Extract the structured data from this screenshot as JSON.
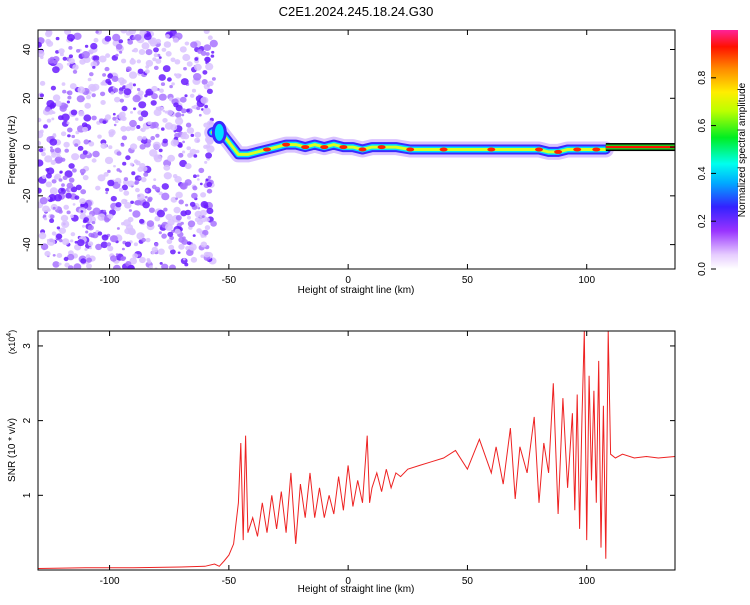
{
  "title": "C2E1.2024.245.18.24.G30",
  "colors": {
    "background": "#ffffff",
    "dot_purple": "#7a2cff",
    "snr_line": "#ee2222"
  },
  "chart_data": [
    {
      "type": "heatmap",
      "title": "C2E1.2024.245.18.24.G30",
      "xlabel": "Height of straight line (km)",
      "ylabel": "Frequency (Hz)",
      "xlim": [
        -130,
        137
      ],
      "ylim": [
        -50,
        48
      ],
      "x_ticks": [
        -100,
        -50,
        0,
        50,
        100
      ],
      "x_tick_labels": [
        "-100",
        "-50",
        "0",
        "50",
        "100"
      ],
      "y_ticks": [
        -40,
        -20,
        0,
        20,
        40
      ],
      "y_tick_labels": [
        "-40",
        "-20",
        "0",
        "20",
        "40"
      ],
      "noise_region_x": [
        -130,
        -56
      ],
      "ridge": {
        "x": [
          -57,
          -54,
          -50,
          -46,
          -42,
          -38,
          -34,
          -30,
          -26,
          -22,
          -18,
          -14,
          -10,
          -6,
          -2,
          2,
          6,
          10,
          14,
          20,
          26,
          32,
          40,
          50,
          60,
          70,
          80,
          84,
          88,
          92,
          96,
          100,
          104,
          108
        ],
        "y": [
          6,
          7,
          2,
          -3,
          -3,
          -2,
          -1,
          0,
          1,
          1,
          0,
          1,
          0,
          1,
          0,
          0,
          -1,
          0,
          0,
          0,
          -1,
          -1,
          -1,
          -1,
          -1,
          -1,
          -1,
          -2,
          -2,
          -1,
          -1,
          -1,
          -1,
          -1
        ]
      },
      "constant_line_x": [
        108,
        137
      ],
      "constant_line_y": 0,
      "colorbar": {
        "label": "Normalized spectral amplitude",
        "ticks": [
          0.0,
          0.2,
          0.4,
          0.6,
          0.8
        ],
        "tick_labels": [
          "0.0",
          "0.2",
          "0.4",
          "0.6",
          "0.8"
        ],
        "range": [
          0,
          1
        ]
      }
    },
    {
      "type": "line",
      "xlabel": "Height of straight line (km)",
      "ylabel": "SNR (10 * v/v)",
      "y_multiplier_label": "(x10",
      "y_multiplier_exp": "4",
      "y_multiplier_close": ")",
      "xlim": [
        -130,
        137
      ],
      "ylim": [
        0,
        3.2
      ],
      "x_ticks": [
        -100,
        -50,
        0,
        50,
        100
      ],
      "x_tick_labels": [
        "-100",
        "-50",
        "0",
        "50",
        "100"
      ],
      "y_ticks": [
        1,
        2,
        3
      ],
      "y_tick_labels": [
        "1",
        "2",
        "3"
      ],
      "series": [
        {
          "x": [
            -130,
            -110,
            -90,
            -70,
            -60,
            -56,
            -54,
            -52,
            -50,
            -48,
            -46,
            -45,
            -44,
            -43,
            -42,
            -40,
            -38,
            -36,
            -34,
            -32,
            -30,
            -28,
            -26,
            -24,
            -22,
            -20,
            -18,
            -16,
            -14,
            -12,
            -10,
            -8,
            -6,
            -4,
            -2,
            0,
            2,
            4,
            6,
            8,
            9,
            10,
            12,
            14,
            16,
            18,
            20,
            22,
            25,
            30,
            35,
            40,
            45,
            50,
            55,
            60,
            62,
            65,
            68,
            70,
            72,
            75,
            78,
            80,
            82,
            84,
            86,
            88,
            90,
            92,
            94,
            95,
            96,
            97,
            98,
            99,
            100,
            101,
            102,
            103,
            104,
            105,
            106,
            107,
            108,
            109,
            110,
            112,
            115,
            120,
            125,
            130,
            137
          ],
          "y": [
            0.02,
            0.03,
            0.03,
            0.04,
            0.05,
            0.08,
            0.05,
            0.12,
            0.2,
            0.35,
            0.9,
            1.7,
            0.4,
            1.8,
            0.5,
            0.7,
            0.45,
            0.9,
            0.5,
            1.0,
            0.55,
            1.05,
            0.5,
            1.3,
            0.35,
            1.15,
            0.7,
            1.3,
            0.7,
            1.1,
            0.7,
            1.0,
            0.75,
            1.25,
            0.8,
            1.4,
            0.85,
            1.2,
            0.9,
            1.8,
            0.9,
            1.1,
            1.3,
            1.05,
            1.35,
            1.1,
            1.3,
            1.25,
            1.35,
            1.4,
            1.45,
            1.5,
            1.6,
            1.35,
            1.75,
            1.3,
            1.65,
            1.15,
            1.9,
            0.95,
            1.65,
            1.3,
            2.05,
            0.9,
            1.7,
            1.3,
            2.5,
            0.75,
            2.3,
            1.1,
            2.1,
            0.8,
            2.35,
            0.55,
            2.05,
            3.2,
            0.4,
            2.6,
            1.2,
            2.4,
            0.9,
            2.8,
            0.3,
            2.2,
            0.15,
            3.2,
            1.55,
            1.5,
            1.55,
            1.5,
            1.52,
            1.5,
            1.52
          ]
        }
      ]
    }
  ]
}
